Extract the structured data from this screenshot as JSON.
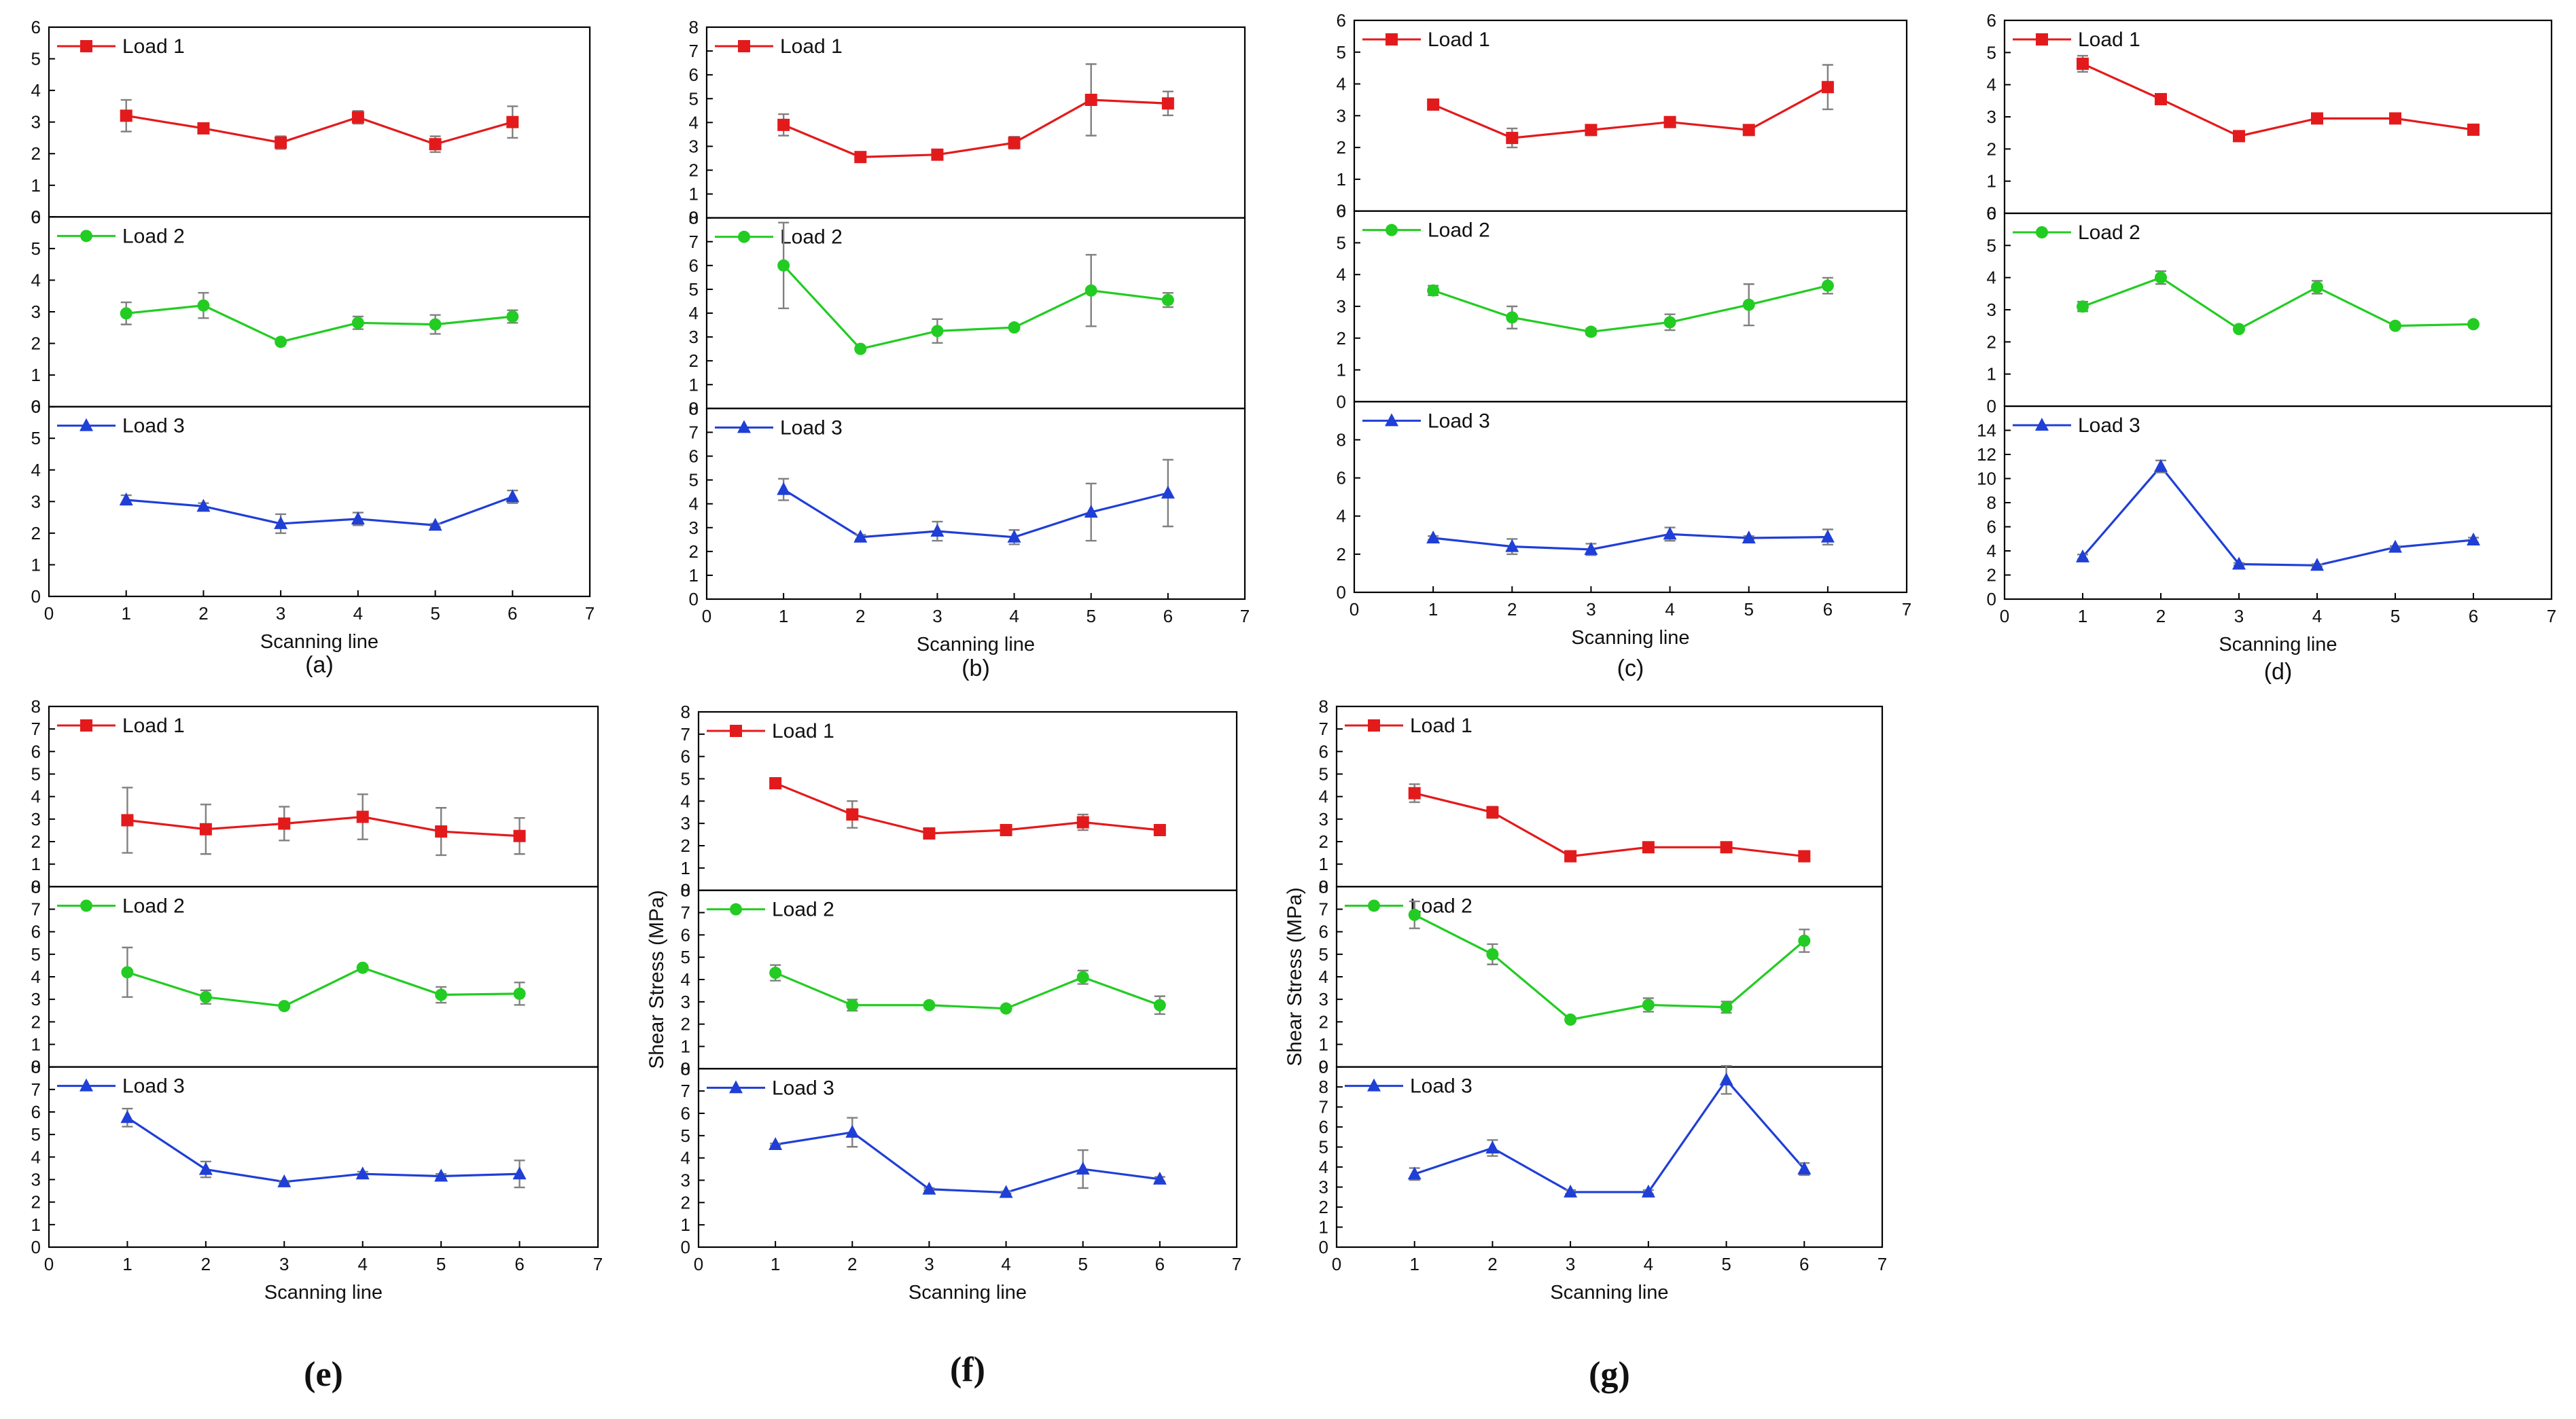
{
  "chart_data": [
    {
      "id": "a",
      "caption": "(a)",
      "type": "line",
      "x": [
        1,
        2,
        3,
        4,
        5,
        6
      ],
      "xlim": [
        0,
        7
      ],
      "xticks": [
        0,
        1,
        2,
        3,
        4,
        5,
        6,
        7
      ],
      "xlabel": "Scanning line",
      "ylabel": "",
      "panels": [
        {
          "name": "Load 1",
          "color": "#e31a1c",
          "marker": "square",
          "ylim": [
            0,
            6
          ],
          "yticks": [
            0,
            1,
            2,
            3,
            4,
            5,
            6
          ],
          "values": [
            3.2,
            2.8,
            2.35,
            3.15,
            2.3,
            3.0
          ],
          "errors": [
            0.5,
            0.1,
            0.2,
            0.2,
            0.25,
            0.5
          ]
        },
        {
          "name": "Load 2",
          "color": "#22cc22",
          "marker": "circle",
          "ylim": [
            0,
            6
          ],
          "yticks": [
            0,
            1,
            2,
            3,
            4,
            5,
            6
          ],
          "values": [
            2.95,
            3.2,
            2.05,
            2.65,
            2.6,
            2.85
          ],
          "errors": [
            0.35,
            0.4,
            0.05,
            0.2,
            0.3,
            0.2
          ]
        },
        {
          "name": "Load 3",
          "color": "#1f3fd6",
          "marker": "triangle",
          "ylim": [
            0,
            6
          ],
          "yticks": [
            0,
            1,
            2,
            3,
            4,
            5,
            6
          ],
          "values": [
            3.05,
            2.85,
            2.3,
            2.45,
            2.25,
            3.15
          ],
          "errors": [
            0.15,
            0.1,
            0.3,
            0.2,
            0.05,
            0.2
          ]
        }
      ]
    },
    {
      "id": "b",
      "caption": "(b)",
      "type": "line",
      "x": [
        1,
        2,
        3,
        4,
        5,
        6
      ],
      "xlim": [
        0,
        7
      ],
      "xticks": [
        0,
        1,
        2,
        3,
        4,
        5,
        6,
        7
      ],
      "xlabel": "Scanning line",
      "ylabel": "",
      "panels": [
        {
          "name": "Load 1",
          "color": "#e31a1c",
          "marker": "square",
          "ylim": [
            0,
            8
          ],
          "yticks": [
            0,
            1,
            2,
            3,
            4,
            5,
            6,
            7,
            8
          ],
          "values": [
            3.9,
            2.55,
            2.65,
            3.15,
            4.95,
            4.8
          ],
          "errors": [
            0.45,
            0.1,
            0.05,
            0.25,
            1.5,
            0.5
          ]
        },
        {
          "name": "Load 2",
          "color": "#22cc22",
          "marker": "circle",
          "ylim": [
            0,
            8
          ],
          "yticks": [
            0,
            1,
            2,
            3,
            4,
            5,
            6,
            7,
            8
          ],
          "values": [
            6.0,
            2.5,
            3.25,
            3.4,
            4.95,
            4.55
          ],
          "errors": [
            1.8,
            0.1,
            0.5,
            0.05,
            1.5,
            0.3
          ]
        },
        {
          "name": "Load 3",
          "color": "#1f3fd6",
          "marker": "triangle",
          "ylim": [
            0,
            8
          ],
          "yticks": [
            0,
            1,
            2,
            3,
            4,
            5,
            6,
            7,
            8
          ],
          "values": [
            4.6,
            2.6,
            2.85,
            2.6,
            3.65,
            4.45
          ],
          "errors": [
            0.45,
            0.1,
            0.4,
            0.3,
            1.2,
            1.4
          ]
        }
      ]
    },
    {
      "id": "c",
      "caption": "(c)",
      "type": "line",
      "x": [
        1,
        2,
        3,
        4,
        5,
        6
      ],
      "xlim": [
        0,
        7
      ],
      "xticks": [
        0,
        1,
        2,
        3,
        4,
        5,
        6,
        7
      ],
      "xlabel": "Scanning line",
      "ylabel": "",
      "panels": [
        {
          "name": "Load 1",
          "color": "#e31a1c",
          "marker": "square",
          "ylim": [
            0,
            6
          ],
          "yticks": [
            0,
            1,
            2,
            3,
            4,
            5,
            6
          ],
          "values": [
            3.35,
            2.3,
            2.55,
            2.8,
            2.55,
            3.9
          ],
          "errors": [
            0.05,
            0.3,
            0.1,
            0.05,
            0.05,
            0.7
          ]
        },
        {
          "name": "Load 2",
          "color": "#22cc22",
          "marker": "circle",
          "ylim": [
            0,
            6
          ],
          "yticks": [
            0,
            1,
            2,
            3,
            4,
            5,
            6
          ],
          "values": [
            3.5,
            2.65,
            2.2,
            2.5,
            3.05,
            3.65
          ],
          "errors": [
            0.15,
            0.35,
            0.1,
            0.25,
            0.65,
            0.25
          ]
        },
        {
          "name": "Load 3",
          "color": "#1f3fd6",
          "marker": "triangle",
          "ylim": [
            0,
            10
          ],
          "yticks": [
            0,
            2,
            4,
            6,
            8
          ],
          "values": [
            2.85,
            2.4,
            2.25,
            3.05,
            2.85,
            2.9
          ],
          "errors": [
            0.1,
            0.4,
            0.3,
            0.35,
            0.1,
            0.4
          ]
        }
      ]
    },
    {
      "id": "d",
      "caption": "(d)",
      "type": "line",
      "x": [
        1,
        2,
        3,
        4,
        5,
        6
      ],
      "xlim": [
        0,
        7
      ],
      "xticks": [
        0,
        1,
        2,
        3,
        4,
        5,
        6,
        7
      ],
      "xlabel": "Scanning line",
      "ylabel": "",
      "panels": [
        {
          "name": "Load 1",
          "color": "#e31a1c",
          "marker": "square",
          "ylim": [
            0,
            6
          ],
          "yticks": [
            0,
            1,
            2,
            3,
            4,
            5,
            6
          ],
          "values": [
            4.65,
            3.55,
            2.4,
            2.95,
            2.95,
            2.6
          ],
          "errors": [
            0.25,
            0.15,
            0.05,
            0.1,
            0.05,
            0.05
          ]
        },
        {
          "name": "Load 2",
          "color": "#22cc22",
          "marker": "circle",
          "ylim": [
            0,
            6
          ],
          "yticks": [
            0,
            1,
            2,
            3,
            4,
            5,
            6
          ],
          "values": [
            3.1,
            4.0,
            2.4,
            3.7,
            2.5,
            2.55
          ],
          "errors": [
            0.15,
            0.2,
            0.05,
            0.2,
            0.05,
            0.05
          ]
        },
        {
          "name": "Load 3",
          "color": "#1f3fd6",
          "marker": "triangle",
          "ylim": [
            0,
            16
          ],
          "yticks": [
            0,
            2,
            4,
            6,
            8,
            10,
            12,
            14
          ],
          "values": [
            3.5,
            11.0,
            2.9,
            2.8,
            4.3,
            4.9
          ],
          "errors": [
            0.2,
            0.5,
            0.1,
            0.1,
            0.1,
            0.2
          ]
        }
      ]
    },
    {
      "id": "e",
      "caption": "(e)",
      "type": "line",
      "x": [
        1,
        2,
        3,
        4,
        5,
        6
      ],
      "xlim": [
        0,
        7
      ],
      "xticks": [
        0,
        1,
        2,
        3,
        4,
        5,
        6,
        7
      ],
      "xlabel": "Scanning line",
      "ylabel": "",
      "panels": [
        {
          "name": "Load 1",
          "color": "#e31a1c",
          "marker": "square",
          "ylim": [
            0,
            8
          ],
          "yticks": [
            0,
            1,
            2,
            3,
            4,
            5,
            6,
            7,
            8
          ],
          "values": [
            2.95,
            2.55,
            2.8,
            3.1,
            2.45,
            2.25
          ],
          "errors": [
            1.45,
            1.1,
            0.75,
            1.0,
            1.05,
            0.8
          ]
        },
        {
          "name": "Load 2",
          "color": "#22cc22",
          "marker": "circle",
          "ylim": [
            0,
            8
          ],
          "yticks": [
            0,
            1,
            2,
            3,
            4,
            5,
            6,
            7,
            8
          ],
          "values": [
            4.2,
            3.1,
            2.7,
            4.4,
            3.2,
            3.25
          ],
          "errors": [
            1.1,
            0.3,
            0.05,
            0.1,
            0.35,
            0.5
          ]
        },
        {
          "name": "Load 3",
          "color": "#1f3fd6",
          "marker": "triangle",
          "ylim": [
            0,
            8
          ],
          "yticks": [
            0,
            1,
            2,
            3,
            4,
            5,
            6,
            7,
            8
          ],
          "values": [
            5.75,
            3.45,
            2.9,
            3.25,
            3.15,
            3.25
          ],
          "errors": [
            0.4,
            0.35,
            0.05,
            0.1,
            0.1,
            0.6
          ]
        }
      ]
    },
    {
      "id": "f",
      "caption": "(f)",
      "type": "line",
      "x": [
        1,
        2,
        3,
        4,
        5,
        6
      ],
      "xlim": [
        0,
        7
      ],
      "xticks": [
        0,
        1,
        2,
        3,
        4,
        5,
        6,
        7
      ],
      "xlabel": "Scanning line",
      "ylabel": "Shear Stress (MPa)",
      "panels": [
        {
          "name": "Load 1",
          "color": "#e31a1c",
          "marker": "square",
          "ylim": [
            0,
            8
          ],
          "yticks": [
            0,
            1,
            2,
            3,
            4,
            5,
            6,
            7,
            8
          ],
          "values": [
            4.8,
            3.4,
            2.55,
            2.7,
            3.05,
            2.7
          ],
          "errors": [
            0.05,
            0.6,
            0.2,
            0.1,
            0.35,
            0.1
          ]
        },
        {
          "name": "Load 2",
          "color": "#22cc22",
          "marker": "circle",
          "ylim": [
            0,
            8
          ],
          "yticks": [
            0,
            1,
            2,
            3,
            4,
            5,
            6,
            7,
            8
          ],
          "values": [
            4.3,
            2.85,
            2.85,
            2.7,
            4.1,
            2.85
          ],
          "errors": [
            0.35,
            0.25,
            0.05,
            0.05,
            0.3,
            0.4
          ]
        },
        {
          "name": "Load 3",
          "color": "#1f3fd6",
          "marker": "triangle",
          "ylim": [
            0,
            8
          ],
          "yticks": [
            0,
            1,
            2,
            3,
            4,
            5,
            6,
            7,
            8
          ],
          "values": [
            4.6,
            5.15,
            2.6,
            2.45,
            3.5,
            3.05
          ],
          "errors": [
            0.05,
            0.65,
            0.05,
            0.05,
            0.85,
            0.1
          ]
        }
      ]
    },
    {
      "id": "g",
      "caption": "(g)",
      "type": "line",
      "x": [
        1,
        2,
        3,
        4,
        5,
        6
      ],
      "xlim": [
        0,
        7
      ],
      "xticks": [
        0,
        1,
        2,
        3,
        4,
        5,
        6,
        7
      ],
      "xlabel": "Scanning line",
      "ylabel": "Shear Stress (MPa)",
      "panels": [
        {
          "name": "Load 1",
          "color": "#e31a1c",
          "marker": "square",
          "ylim": [
            0,
            8
          ],
          "yticks": [
            0,
            1,
            2,
            3,
            4,
            5,
            6,
            7,
            8
          ],
          "values": [
            4.15,
            3.3,
            1.35,
            1.75,
            1.75,
            1.35
          ],
          "errors": [
            0.4,
            0.25,
            0.05,
            0.05,
            0.05,
            0.05
          ]
        },
        {
          "name": "Load 2",
          "color": "#22cc22",
          "marker": "circle",
          "ylim": [
            0,
            8
          ],
          "yticks": [
            0,
            1,
            2,
            3,
            4,
            5,
            6,
            7,
            8
          ],
          "values": [
            6.75,
            5.0,
            2.1,
            2.75,
            2.65,
            5.6
          ],
          "errors": [
            0.6,
            0.45,
            0.1,
            0.3,
            0.25,
            0.5
          ]
        },
        {
          "name": "Load 3",
          "color": "#1f3fd6",
          "marker": "triangle",
          "ylim": [
            0,
            9
          ],
          "yticks": [
            0,
            1,
            2,
            3,
            4,
            5,
            6,
            7,
            8,
            9
          ],
          "values": [
            3.65,
            4.95,
            2.75,
            2.75,
            8.35,
            3.9
          ],
          "errors": [
            0.3,
            0.4,
            0.1,
            0.1,
            0.7,
            0.3
          ]
        }
      ]
    }
  ]
}
